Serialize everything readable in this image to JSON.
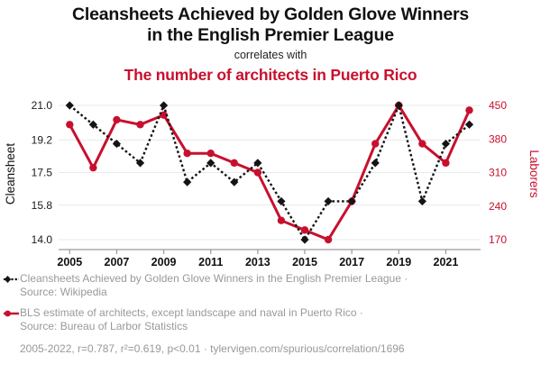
{
  "header": {
    "title_lines": [
      "Cleansheets Achieved by Golden Glove Winners",
      "in the English Premier League"
    ],
    "connector": "correlates with",
    "subtitle": "The number of architects in Puerto Rico"
  },
  "colors": {
    "accent_red": "#c8102e",
    "series_black": "#141414",
    "legend_gray": "#999999",
    "gridline": "#eaeaea",
    "axis_line": "#9a9a9a"
  },
  "chart_data": {
    "type": "line",
    "x": [
      2005,
      2006,
      2007,
      2008,
      2009,
      2010,
      2011,
      2012,
      2013,
      2014,
      2015,
      2016,
      2017,
      2018,
      2019,
      2020,
      2021,
      2022
    ],
    "x_ticks": [
      "2005",
      "2007",
      "2009",
      "2011",
      "2013",
      "2015",
      "2017",
      "2019",
      "2021"
    ],
    "left_axis": {
      "label": "Cleansheet",
      "ticks": [
        "21.0",
        "19.2",
        "17.5",
        "15.8",
        "14.0"
      ],
      "range": [
        14.0,
        21.0
      ]
    },
    "right_axis": {
      "label": "Laborers",
      "ticks": [
        "450",
        "380",
        "310",
        "240",
        "170"
      ],
      "range": [
        170,
        450
      ]
    },
    "series": [
      {
        "name": "Cleansheets Achieved by Golden Glove Winners in the English Premier League",
        "axis": "left",
        "color": "#141414",
        "style": "dashed-diamond",
        "values": [
          21,
          20,
          19,
          18,
          21,
          17,
          18,
          17,
          18,
          16,
          14,
          16,
          16,
          18,
          21,
          16,
          19,
          20
        ]
      },
      {
        "name": "BLS estimate of architects, except landscape and naval in Puerto Rico",
        "axis": "right",
        "color": "#c8102e",
        "style": "solid-circle",
        "values": [
          410,
          320,
          420,
          410,
          430,
          350,
          350,
          330,
          310,
          210,
          190,
          170,
          250,
          370,
          450,
          370,
          330,
          440
        ]
      }
    ],
    "grid": "horizontal",
    "legend_position": "bottom"
  },
  "legend": {
    "items": [
      {
        "marker": "black-diamond-dashed",
        "lines": [
          "Cleansheets Achieved by Golden Glove Winners in the English Premier League ·",
          "Source: Wikipedia"
        ]
      },
      {
        "marker": "red-dot-solid",
        "lines": [
          "BLS estimate of architects, except landscape and naval in Puerto Rico ·",
          "Source: Bureau of Larbor Statistics"
        ]
      }
    ],
    "stats_line": "2005-2022, r=0.787, r²=0.619, p<0.01 · tylervigen.com/spurious/correlation/1696"
  }
}
